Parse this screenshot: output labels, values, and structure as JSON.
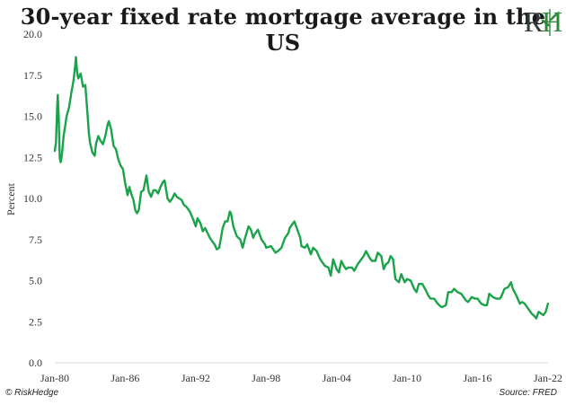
{
  "title": "30-year fixed rate mortgage average in the US",
  "logo": {
    "text": "RH"
  },
  "footer": {
    "credit": "© RiskHedge",
    "source": "Source: FRED"
  },
  "colors": {
    "line": "#1aa34a",
    "logo_green": "#2e8b3a",
    "axis": "#d9d9d9",
    "text": "#333333"
  },
  "chart_data": {
    "type": "line",
    "title": "30-year fixed rate mortgage average in the US",
    "xlabel": "",
    "ylabel": "Percent",
    "ylim": [
      0,
      20
    ],
    "yticks": [
      "0.0",
      "2.5",
      "5.0",
      "7.5",
      "10.0",
      "12.5",
      "15.0",
      "17.5",
      "20.0"
    ],
    "xlim": [
      1980.0,
      2022.0
    ],
    "xticks": [
      {
        "x": 1980,
        "label": "Jan-80"
      },
      {
        "x": 1986,
        "label": "Jan-86"
      },
      {
        "x": 1992,
        "label": "Jan-92"
      },
      {
        "x": 1998,
        "label": "Jan-98"
      },
      {
        "x": 2004,
        "label": "Jan-04"
      },
      {
        "x": 2010,
        "label": "Jan-10"
      },
      {
        "x": 2016,
        "label": "Jan-16"
      },
      {
        "x": 2022,
        "label": "Jan-22"
      }
    ],
    "grid": false,
    "legend": "none",
    "series": [
      {
        "color": "#1aa34a",
        "points": [
          [
            1980.0,
            12.9
          ],
          [
            1980.1,
            13.4
          ],
          [
            1980.2,
            15.5
          ],
          [
            1980.25,
            16.3
          ],
          [
            1980.33,
            15.0
          ],
          [
            1980.42,
            12.5
          ],
          [
            1980.5,
            12.2
          ],
          [
            1980.6,
            12.6
          ],
          [
            1980.75,
            13.8
          ],
          [
            1980.9,
            14.5
          ],
          [
            1981.0,
            15.0
          ],
          [
            1981.2,
            15.5
          ],
          [
            1981.4,
            16.4
          ],
          [
            1981.6,
            17.2
          ],
          [
            1981.75,
            18.2
          ],
          [
            1981.8,
            18.6
          ],
          [
            1981.9,
            17.7
          ],
          [
            1982.0,
            17.3
          ],
          [
            1982.2,
            17.6
          ],
          [
            1982.4,
            16.8
          ],
          [
            1982.6,
            16.9
          ],
          [
            1982.75,
            15.5
          ],
          [
            1982.9,
            14.0
          ],
          [
            1983.0,
            13.4
          ],
          [
            1983.2,
            12.8
          ],
          [
            1983.4,
            12.6
          ],
          [
            1983.5,
            13.3
          ],
          [
            1983.7,
            13.8
          ],
          [
            1983.9,
            13.5
          ],
          [
            1984.1,
            13.3
          ],
          [
            1984.3,
            13.8
          ],
          [
            1984.5,
            14.5
          ],
          [
            1984.6,
            14.7
          ],
          [
            1984.8,
            14.2
          ],
          [
            1985.0,
            13.2
          ],
          [
            1985.2,
            13.0
          ],
          [
            1985.4,
            12.4
          ],
          [
            1985.6,
            12.0
          ],
          [
            1985.8,
            11.8
          ],
          [
            1986.0,
            10.9
          ],
          [
            1986.2,
            10.2
          ],
          [
            1986.35,
            10.7
          ],
          [
            1986.5,
            10.3
          ],
          [
            1986.7,
            9.9
          ],
          [
            1986.85,
            9.3
          ],
          [
            1987.0,
            9.1
          ],
          [
            1987.15,
            9.3
          ],
          [
            1987.35,
            10.4
          ],
          [
            1987.55,
            10.5
          ],
          [
            1987.8,
            11.4
          ],
          [
            1988.0,
            10.4
          ],
          [
            1988.2,
            10.1
          ],
          [
            1988.4,
            10.5
          ],
          [
            1988.6,
            10.5
          ],
          [
            1988.8,
            10.3
          ],
          [
            1989.0,
            10.7
          ],
          [
            1989.2,
            11.0
          ],
          [
            1989.35,
            11.1
          ],
          [
            1989.6,
            10.0
          ],
          [
            1989.8,
            9.8
          ],
          [
            1990.0,
            10.0
          ],
          [
            1990.2,
            10.3
          ],
          [
            1990.4,
            10.1
          ],
          [
            1990.6,
            10.0
          ],
          [
            1990.8,
            9.9
          ],
          [
            1991.0,
            9.6
          ],
          [
            1991.2,
            9.5
          ],
          [
            1991.5,
            9.2
          ],
          [
            1991.8,
            8.7
          ],
          [
            1992.0,
            8.3
          ],
          [
            1992.15,
            8.8
          ],
          [
            1992.4,
            8.5
          ],
          [
            1992.6,
            8.0
          ],
          [
            1992.8,
            8.2
          ],
          [
            1993.0,
            7.9
          ],
          [
            1993.3,
            7.5
          ],
          [
            1993.6,
            7.2
          ],
          [
            1993.8,
            6.9
          ],
          [
            1994.0,
            7.0
          ],
          [
            1994.3,
            8.2
          ],
          [
            1994.5,
            8.6
          ],
          [
            1994.7,
            8.6
          ],
          [
            1994.9,
            9.2
          ],
          [
            1995.0,
            9.1
          ],
          [
            1995.2,
            8.3
          ],
          [
            1995.5,
            7.7
          ],
          [
            1995.8,
            7.5
          ],
          [
            1996.0,
            7.0
          ],
          [
            1996.2,
            7.6
          ],
          [
            1996.5,
            8.3
          ],
          [
            1996.7,
            8.1
          ],
          [
            1996.9,
            7.6
          ],
          [
            1997.0,
            7.8
          ],
          [
            1997.3,
            8.1
          ],
          [
            1997.6,
            7.5
          ],
          [
            1997.9,
            7.2
          ],
          [
            1998.0,
            7.0
          ],
          [
            1998.4,
            7.1
          ],
          [
            1998.8,
            6.7
          ],
          [
            1999.0,
            6.8
          ],
          [
            1999.3,
            7.0
          ],
          [
            1999.6,
            7.6
          ],
          [
            1999.9,
            7.9
          ],
          [
            2000.0,
            8.2
          ],
          [
            2000.3,
            8.5
          ],
          [
            2000.4,
            8.6
          ],
          [
            2000.6,
            8.2
          ],
          [
            2000.9,
            7.6
          ],
          [
            2001.0,
            7.1
          ],
          [
            2001.3,
            7.0
          ],
          [
            2001.5,
            7.2
          ],
          [
            2001.8,
            6.6
          ],
          [
            2002.0,
            7.0
          ],
          [
            2002.3,
            6.8
          ],
          [
            2002.6,
            6.3
          ],
          [
            2002.9,
            6.0
          ],
          [
            2003.0,
            5.9
          ],
          [
            2003.3,
            5.8
          ],
          [
            2003.5,
            5.3
          ],
          [
            2003.7,
            6.3
          ],
          [
            2004.0,
            5.7
          ],
          [
            2004.2,
            5.5
          ],
          [
            2004.4,
            6.2
          ],
          [
            2004.6,
            5.9
          ],
          [
            2004.8,
            5.7
          ],
          [
            2005.0,
            5.8
          ],
          [
            2005.3,
            5.8
          ],
          [
            2005.5,
            5.6
          ],
          [
            2005.8,
            6.0
          ],
          [
            2006.0,
            6.2
          ],
          [
            2006.3,
            6.5
          ],
          [
            2006.5,
            6.8
          ],
          [
            2006.8,
            6.4
          ],
          [
            2007.0,
            6.2
          ],
          [
            2007.3,
            6.2
          ],
          [
            2007.5,
            6.7
          ],
          [
            2007.8,
            6.5
          ],
          [
            2008.0,
            5.7
          ],
          [
            2008.2,
            6.0
          ],
          [
            2008.4,
            6.1
          ],
          [
            2008.6,
            6.5
          ],
          [
            2008.8,
            6.3
          ],
          [
            2009.0,
            5.1
          ],
          [
            2009.3,
            4.9
          ],
          [
            2009.5,
            5.4
          ],
          [
            2009.8,
            4.9
          ],
          [
            2010.0,
            5.1
          ],
          [
            2010.3,
            5.0
          ],
          [
            2010.6,
            4.5
          ],
          [
            2010.8,
            4.3
          ],
          [
            2011.0,
            4.8
          ],
          [
            2011.3,
            4.8
          ],
          [
            2011.6,
            4.4
          ],
          [
            2011.8,
            4.1
          ],
          [
            2012.0,
            3.9
          ],
          [
            2012.3,
            3.9
          ],
          [
            2012.6,
            3.6
          ],
          [
            2012.9,
            3.4
          ],
          [
            2013.0,
            3.4
          ],
          [
            2013.3,
            3.5
          ],
          [
            2013.5,
            4.3
          ],
          [
            2013.8,
            4.3
          ],
          [
            2014.0,
            4.5
          ],
          [
            2014.3,
            4.3
          ],
          [
            2014.6,
            4.2
          ],
          [
            2014.9,
            3.9
          ],
          [
            2015.0,
            3.8
          ],
          [
            2015.2,
            3.7
          ],
          [
            2015.5,
            4.0
          ],
          [
            2015.8,
            3.9
          ],
          [
            2016.0,
            3.9
          ],
          [
            2016.3,
            3.6
          ],
          [
            2016.6,
            3.5
          ],
          [
            2016.8,
            3.5
          ],
          [
            2017.0,
            4.2
          ],
          [
            2017.3,
            4.0
          ],
          [
            2017.6,
            3.9
          ],
          [
            2017.9,
            3.9
          ],
          [
            2018.0,
            4.0
          ],
          [
            2018.3,
            4.5
          ],
          [
            2018.6,
            4.6
          ],
          [
            2018.85,
            4.9
          ],
          [
            2019.0,
            4.5
          ],
          [
            2019.3,
            4.1
          ],
          [
            2019.6,
            3.6
          ],
          [
            2019.8,
            3.7
          ],
          [
            2020.0,
            3.6
          ],
          [
            2020.3,
            3.3
          ],
          [
            2020.6,
            3.0
          ],
          [
            2020.9,
            2.8
          ],
          [
            2021.0,
            2.7
          ],
          [
            2021.2,
            3.1
          ],
          [
            2021.4,
            3.0
          ],
          [
            2021.6,
            2.9
          ],
          [
            2021.8,
            3.1
          ],
          [
            2022.0,
            3.6
          ]
        ]
      }
    ]
  }
}
